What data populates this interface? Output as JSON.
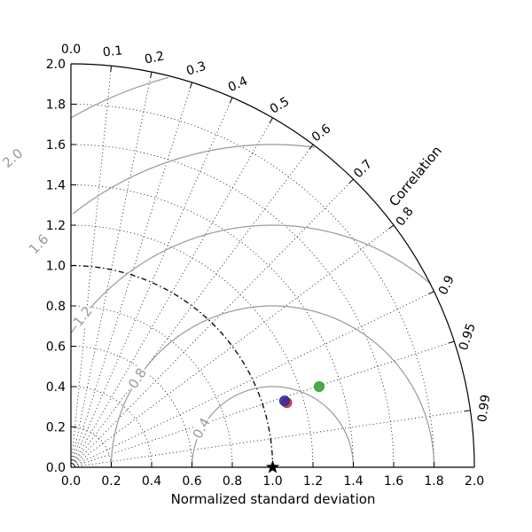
{
  "chart_data": {
    "type": "scatter",
    "subtype": "taylor-diagram",
    "title": "",
    "xlabel": "Normalized standard deviation",
    "ylabel": "",
    "angular_label": "Correlation",
    "std_range": [
      0.0,
      2.0
    ],
    "std_ticks": [
      "0.0",
      "0.2",
      "0.4",
      "0.6",
      "0.8",
      "1.0",
      "1.2",
      "1.4",
      "1.6",
      "1.8",
      "2.0"
    ],
    "correlation_ticks": [
      "0.0",
      "0.1",
      "0.2",
      "0.3",
      "0.4",
      "0.5",
      "0.6",
      "0.7",
      "0.8",
      "0.9",
      "0.95",
      "0.99"
    ],
    "rms_contours": [
      0.4,
      0.8,
      1.2,
      1.6,
      2.0
    ],
    "rms_labels": [
      "0.4",
      "0.8",
      "1.2",
      "1.6",
      "2.0"
    ],
    "reference": {
      "std": 1.0,
      "correlation": 1.0,
      "marker": "star",
      "color": "#000000"
    },
    "reference_arc_std": 1.0,
    "grid": true,
    "legend": "none",
    "series": [
      {
        "std": 1.117,
        "correlation": 0.958,
        "color": "#d62728"
      },
      {
        "std": 1.109,
        "correlation": 0.955,
        "color": "#2c2ca8"
      },
      {
        "std": 1.294,
        "correlation": 0.951,
        "color": "#2ca02c"
      }
    ]
  }
}
